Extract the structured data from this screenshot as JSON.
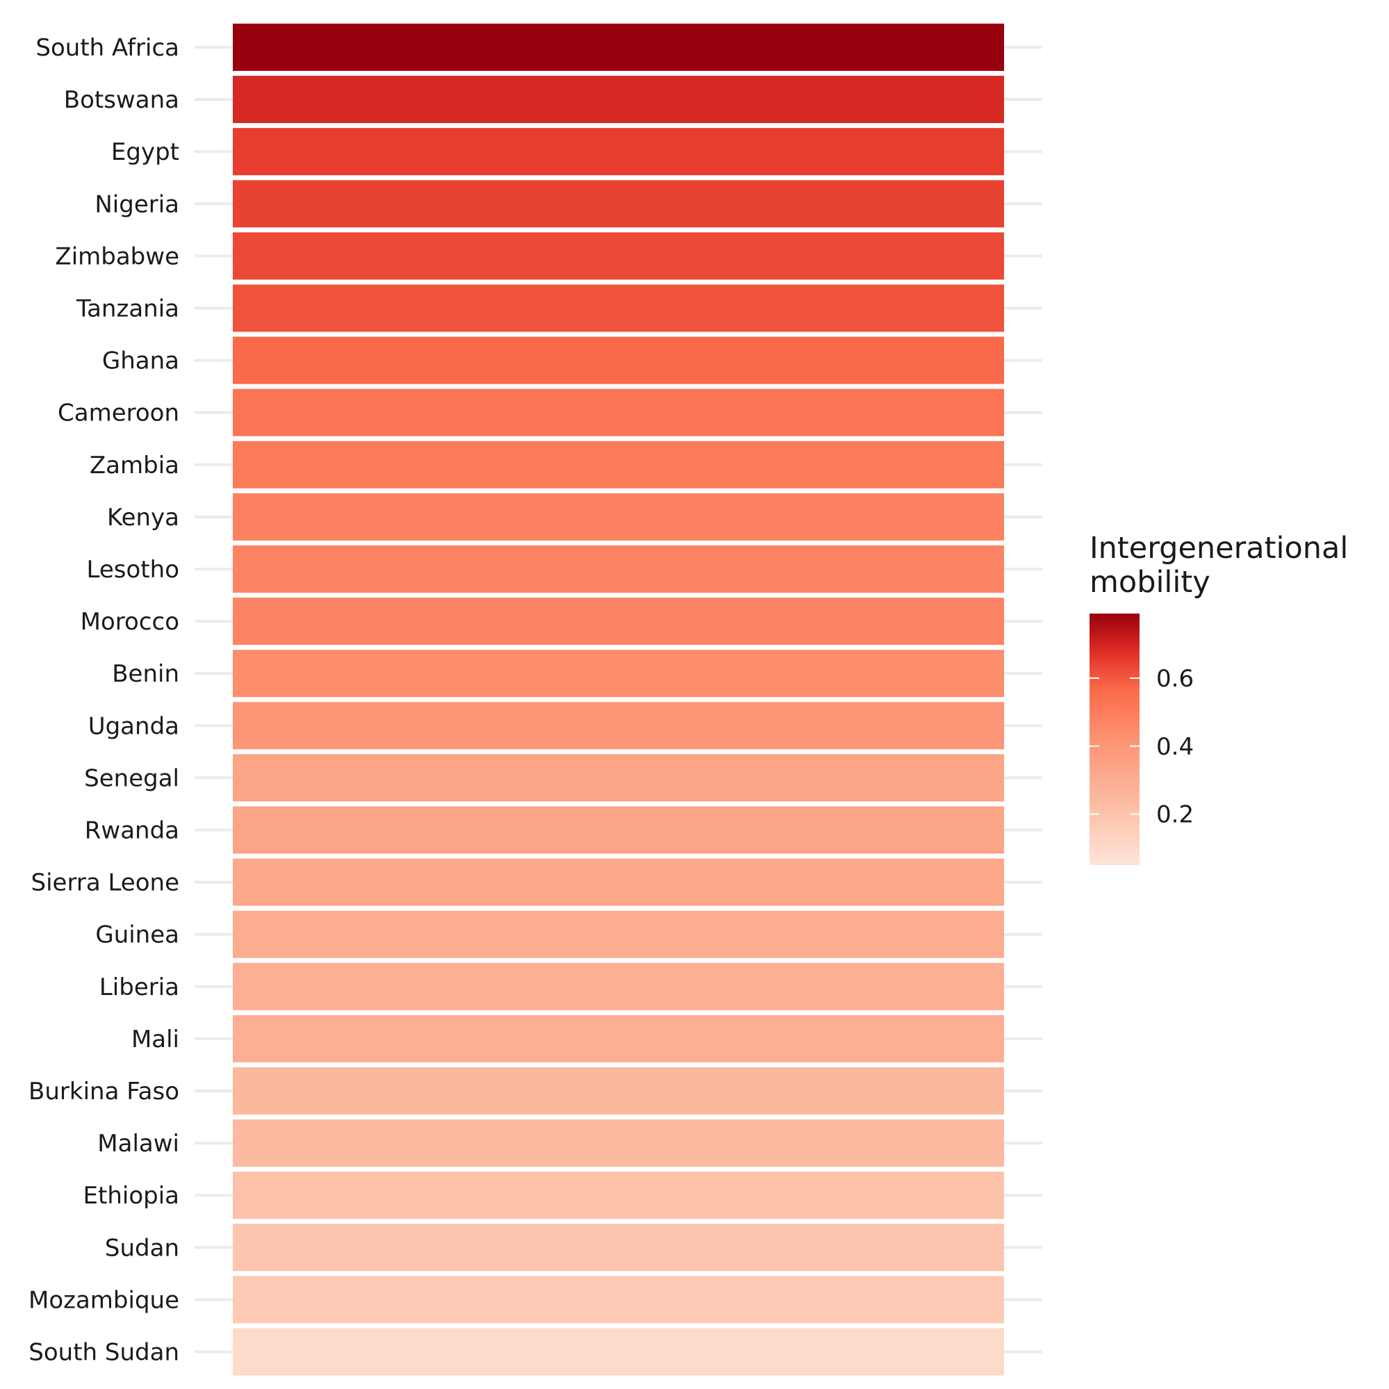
{
  "chart_data": {
    "type": "heatmap",
    "title": "",
    "xlabel": "",
    "ylabel": "",
    "grid": true,
    "legend_position": "right",
    "legend_title": [
      "Intergenerational",
      "mobility"
    ],
    "color_low": "#fee5d9",
    "color_high": "#99000d",
    "color_range": [
      0.05,
      0.79
    ],
    "legend_ticks": [
      "0.2",
      "0.4",
      "0.6"
    ],
    "legend_tick_values": [
      0.2,
      0.4,
      0.6
    ],
    "categories": [
      "South Africa",
      "Botswana",
      "Egypt",
      "Nigeria",
      "Zimbabwe",
      "Tanzania",
      "Ghana",
      "Cameroon",
      "Zambia",
      "Kenya",
      "Lesotho",
      "Morocco",
      "Benin",
      "Uganda",
      "Senegal",
      "Rwanda",
      "Sierra Leone",
      "Guinea",
      "Liberia",
      "Mali",
      "Burkina Faso",
      "Malawi",
      "Ethiopia",
      "Sudan",
      "Mozambique",
      "South Sudan"
    ],
    "values": [
      0.79,
      0.69,
      0.65,
      0.64,
      0.63,
      0.61,
      0.57,
      0.53,
      0.51,
      0.48,
      0.47,
      0.47,
      0.44,
      0.4,
      0.34,
      0.34,
      0.32,
      0.3,
      0.29,
      0.29,
      0.25,
      0.24,
      0.21,
      0.19,
      0.17,
      0.1
    ]
  }
}
